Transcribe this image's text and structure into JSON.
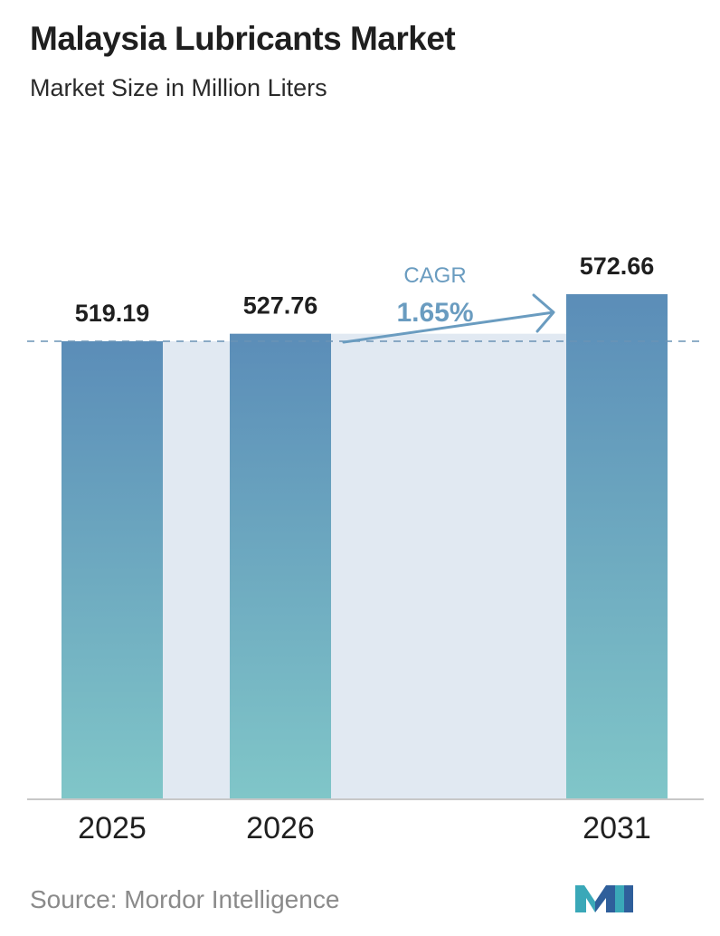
{
  "header": {
    "title": "Malaysia Lubricants Market",
    "subtitle": "Market Size in Million Liters"
  },
  "chart_data": {
    "type": "bar",
    "categories": [
      "2025",
      "2026",
      "2031"
    ],
    "values": [
      519.19,
      527.76,
      572.66
    ],
    "value_labels": [
      "519.19",
      "527.76",
      "572.66"
    ],
    "title": "Malaysia Lubricants Market",
    "subtitle": "Market Size in Million Liters",
    "xlabel": "",
    "ylabel": "",
    "grid": false,
    "reference_line": {
      "value": 519.19,
      "style": "dashed"
    },
    "annotation": {
      "label": "CAGR",
      "value": "1.65%"
    }
  },
  "footer": {
    "source": "Source:  Mordor Intelligence"
  },
  "colors": {
    "bar_top": "#5b8db8",
    "bar_bottom": "#80c6c8",
    "band": "#e1e9f2",
    "dashed_line": "#6a93b5",
    "cagr": "#6a9cc0",
    "axis": "#c8c8c8",
    "logo_teal": "#3aa8b8",
    "logo_blue": "#2f5f9b"
  }
}
